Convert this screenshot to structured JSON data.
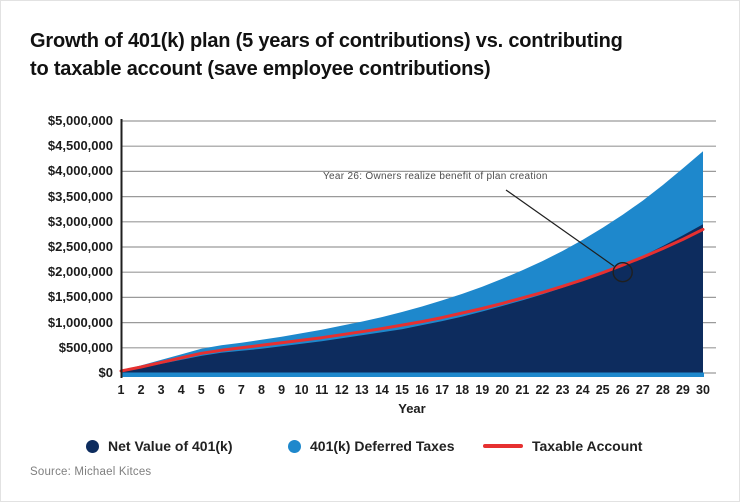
{
  "page": {
    "title_lines": [
      "Growth of 401(k) plan (5 years of contributions) vs. contributing",
      "to taxable account (save employee contributions)"
    ],
    "source": "Source: Michael Kitces"
  },
  "colors": {
    "net_401k": "#0d2c5e",
    "deferred_taxes": "#1e88cc",
    "taxable_line": "#e63030",
    "gridline": "#9a9a9a",
    "axis": "#1f1f1f",
    "annotation": "#4d4d4d"
  },
  "legend": [
    {
      "label": "Net Value of 401(k)",
      "marker": "dot",
      "color": "#0d2c5e"
    },
    {
      "label": "401(k) Deferred Taxes",
      "marker": "dot",
      "color": "#1e88cc"
    },
    {
      "label": "Taxable Account",
      "marker": "line",
      "color": "#e63030"
    }
  ],
  "chart_data": {
    "type": "area",
    "title": "Growth of 401(k) plan (5 years of contributions) vs. contributing to taxable account (save employee contributions)",
    "xlabel": "Year",
    "ylabel": "",
    "x": [
      1,
      2,
      3,
      4,
      5,
      6,
      7,
      8,
      9,
      10,
      11,
      12,
      13,
      14,
      15,
      16,
      17,
      18,
      19,
      20,
      21,
      22,
      23,
      24,
      25,
      26,
      27,
      28,
      29,
      30
    ],
    "series": [
      {
        "name": "Net Value of 401(k)",
        "type": "area-stacked",
        "values_millions": [
          0.03,
          0.1,
          0.18,
          0.26,
          0.34,
          0.4,
          0.44,
          0.48,
          0.53,
          0.58,
          0.63,
          0.69,
          0.75,
          0.81,
          0.87,
          0.95,
          1.03,
          1.12,
          1.22,
          1.33,
          1.44,
          1.56,
          1.69,
          1.83,
          1.98,
          2.14,
          2.32,
          2.52,
          2.73,
          2.95
        ]
      },
      {
        "name": "401(k) Deferred Taxes",
        "type": "area-stacked",
        "values_millions": [
          0.02,
          0.05,
          0.08,
          0.11,
          0.14,
          0.15,
          0.16,
          0.18,
          0.19,
          0.21,
          0.23,
          0.25,
          0.27,
          0.3,
          0.34,
          0.37,
          0.41,
          0.45,
          0.49,
          0.54,
          0.6,
          0.66,
          0.73,
          0.81,
          0.9,
          1.0,
          1.1,
          1.21,
          1.33,
          1.45
        ]
      },
      {
        "name": "Taxable Account",
        "type": "line",
        "values_millions": [
          0.04,
          0.12,
          0.21,
          0.3,
          0.39,
          0.45,
          0.5,
          0.55,
          0.6,
          0.65,
          0.7,
          0.76,
          0.82,
          0.88,
          0.95,
          1.02,
          1.1,
          1.19,
          1.28,
          1.38,
          1.49,
          1.6,
          1.72,
          1.85,
          1.99,
          2.14,
          2.3,
          2.47,
          2.65,
          2.85
        ]
      }
    ],
    "y_ticks": [
      "$0",
      "$500,000",
      "$1,000,000",
      "$1,500,000",
      "$2,000,000",
      "$2,500,000",
      "$3,000,000",
      "$3,500,000",
      "$4,000,000",
      "$4,500,000",
      "$5,000,000"
    ],
    "ylim_millions": [
      0,
      5
    ],
    "grid": "horizontal",
    "legend_position": "bottom",
    "annotation": {
      "text": "Year 26: Owners realize benefit of plan creation",
      "target_year": 26,
      "target_value_millions": 2.0
    }
  }
}
